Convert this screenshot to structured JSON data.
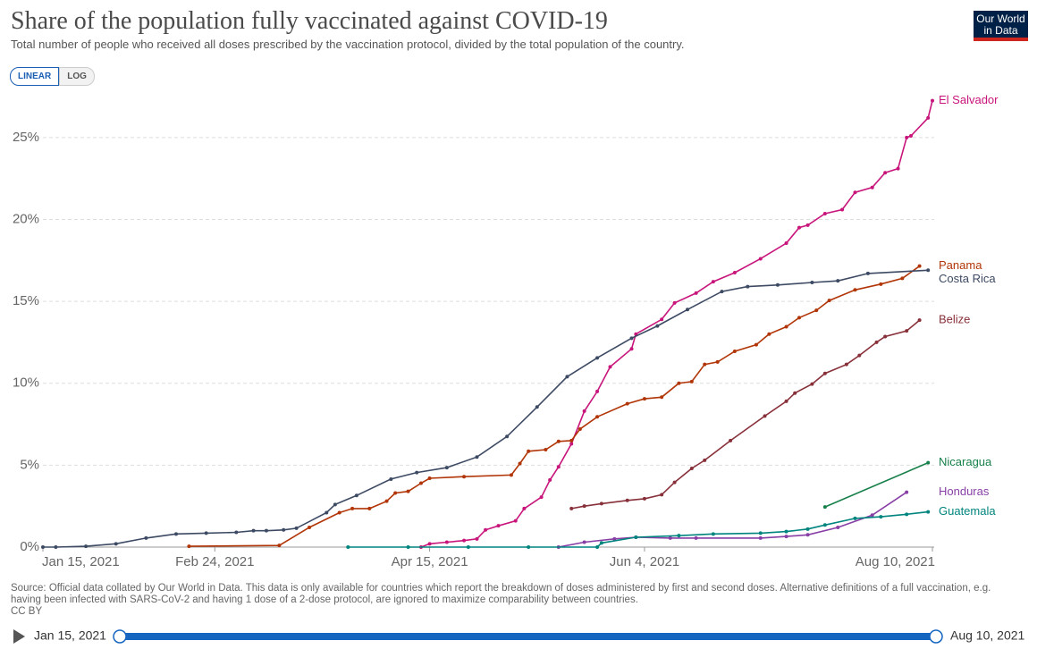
{
  "chart_data": {
    "type": "line",
    "title": "Share of the population fully vaccinated against COVID-19",
    "subtitle": "Total number of people who received all doses prescribed by the vaccination protocol, divided by the total population of the country.",
    "xlim": [
      "2021-01-15",
      "2021-08-10"
    ],
    "xticks": [
      {
        "value": "2021-01-15",
        "label": "Jan 15, 2021"
      },
      {
        "value": "2021-02-24",
        "label": "Feb 24, 2021"
      },
      {
        "value": "2021-04-15",
        "label": "Apr 15, 2021"
      },
      {
        "value": "2021-06-04",
        "label": "Jun 4, 2021"
      },
      {
        "value": "2021-08-10",
        "label": "Aug 10, 2021"
      }
    ],
    "ylim": [
      0,
      27.5
    ],
    "yticks": [
      {
        "value": 0,
        "label": "0%"
      },
      {
        "value": 5,
        "label": "5%"
      },
      {
        "value": 10,
        "label": "10%"
      },
      {
        "value": 15,
        "label": "15%"
      },
      {
        "value": 20,
        "label": "20%"
      },
      {
        "value": 25,
        "label": "25%"
      }
    ],
    "grid": true,
    "log_scale": false,
    "series": [
      {
        "name": "El Salvador",
        "color": "#c8157b",
        "x": [
          "2021-04-13",
          "2021-04-15",
          "2021-04-19",
          "2021-04-23",
          "2021-04-26",
          "2021-04-28",
          "2021-05-01",
          "2021-05-05",
          "2021-05-07",
          "2021-05-11",
          "2021-05-13",
          "2021-05-15",
          "2021-05-18",
          "2021-05-21",
          "2021-05-24",
          "2021-05-27",
          "2021-06-01",
          "2021-06-02",
          "2021-06-08",
          "2021-06-11",
          "2021-06-16",
          "2021-06-20",
          "2021-06-25",
          "2021-07-01",
          "2021-07-07",
          "2021-07-10",
          "2021-07-12",
          "2021-07-16",
          "2021-07-20",
          "2021-07-23",
          "2021-07-27",
          "2021-07-30",
          "2021-08-02",
          "2021-08-04",
          "2021-08-05",
          "2021-08-09",
          "2021-08-10"
        ],
        "values": [
          0,
          0.2,
          0.3,
          0.4,
          0.5,
          1.05,
          1.3,
          1.6,
          2.35,
          3.05,
          4.1,
          4.9,
          6.3,
          8.3,
          9.5,
          11.0,
          12.1,
          13.0,
          13.9,
          14.9,
          15.5,
          16.2,
          16.75,
          17.6,
          18.55,
          19.5,
          19.65,
          20.35,
          20.6,
          21.65,
          21.95,
          22.85,
          23.1,
          25.0,
          25.1,
          26.2,
          27.25
        ]
      },
      {
        "name": "Panama",
        "color": "#b13507",
        "x": [
          "2021-02-18",
          "2021-03-11",
          "2021-03-18",
          "2021-03-25",
          "2021-03-28",
          "2021-04-01",
          "2021-04-05",
          "2021-04-07",
          "2021-04-10",
          "2021-04-13",
          "2021-04-15",
          "2021-04-23",
          "2021-05-04",
          "2021-05-06",
          "2021-05-08",
          "2021-05-12",
          "2021-05-15",
          "2021-05-18",
          "2021-05-20",
          "2021-05-24",
          "2021-05-31",
          "2021-06-04",
          "2021-06-08",
          "2021-06-12",
          "2021-06-15",
          "2021-06-18",
          "2021-06-21",
          "2021-06-25",
          "2021-06-30",
          "2021-07-03",
          "2021-07-07",
          "2021-07-10",
          "2021-07-14",
          "2021-07-17",
          "2021-07-23",
          "2021-07-29",
          "2021-08-03",
          "2021-08-07"
        ],
        "values": [
          0.05,
          0.1,
          1.2,
          2.1,
          2.35,
          2.35,
          2.8,
          3.3,
          3.4,
          3.9,
          4.2,
          4.3,
          4.4,
          5.1,
          5.85,
          5.95,
          6.45,
          6.5,
          7.2,
          7.95,
          8.75,
          9.05,
          9.15,
          10.0,
          10.1,
          11.15,
          11.3,
          11.95,
          12.35,
          13.0,
          13.45,
          14.0,
          14.45,
          15.05,
          15.7,
          16.05,
          16.4,
          17.15
        ]
      },
      {
        "name": "Costa Rica",
        "color": "#3d4a63",
        "x": [
          "2021-01-15",
          "2021-01-18",
          "2021-01-25",
          "2021-02-01",
          "2021-02-08",
          "2021-02-15",
          "2021-02-22",
          "2021-03-01",
          "2021-03-05",
          "2021-03-08",
          "2021-03-12",
          "2021-03-15",
          "2021-03-22",
          "2021-03-24",
          "2021-03-29",
          "2021-04-06",
          "2021-04-12",
          "2021-04-19",
          "2021-04-26",
          "2021-05-03",
          "2021-05-10",
          "2021-05-17",
          "2021-05-24",
          "2021-06-01",
          "2021-06-07",
          "2021-06-14",
          "2021-06-22",
          "2021-06-28",
          "2021-07-05",
          "2021-07-13",
          "2021-07-19",
          "2021-07-26",
          "2021-08-09"
        ],
        "values": [
          0,
          0,
          0.05,
          0.2,
          0.55,
          0.8,
          0.85,
          0.9,
          1.0,
          1.0,
          1.05,
          1.15,
          2.1,
          2.6,
          3.15,
          4.15,
          4.55,
          4.85,
          5.5,
          6.75,
          8.55,
          10.4,
          11.55,
          12.75,
          13.5,
          14.5,
          15.6,
          15.9,
          16.0,
          16.15,
          16.25,
          16.7,
          16.9
        ]
      },
      {
        "name": "Belize",
        "color": "#883039",
        "x": [
          "2021-05-18",
          "2021-05-21",
          "2021-05-25",
          "2021-05-31",
          "2021-06-04",
          "2021-06-08",
          "2021-06-11",
          "2021-06-15",
          "2021-06-18",
          "2021-06-24",
          "2021-07-02",
          "2021-07-07",
          "2021-07-09",
          "2021-07-13",
          "2021-07-16",
          "2021-07-21",
          "2021-07-24",
          "2021-07-28",
          "2021-07-30",
          "2021-08-04",
          "2021-08-07"
        ],
        "values": [
          2.35,
          2.5,
          2.65,
          2.85,
          2.95,
          3.2,
          3.95,
          4.8,
          5.3,
          6.5,
          8.0,
          8.9,
          9.4,
          9.95,
          10.6,
          11.15,
          11.7,
          12.5,
          12.85,
          13.2,
          13.85
        ]
      },
      {
        "name": "Nicaragua",
        "color": "#18804a",
        "x": [
          "2021-07-16",
          "2021-08-09"
        ],
        "values": [
          2.45,
          5.15
        ]
      },
      {
        "name": "Honduras",
        "color": "#883fa5",
        "x": [
          "2021-05-15",
          "2021-05-21",
          "2021-05-28",
          "2021-06-02",
          "2021-06-10",
          "2021-06-16",
          "2021-07-01",
          "2021-07-07",
          "2021-07-12",
          "2021-07-19",
          "2021-07-27",
          "2021-08-04"
        ],
        "values": [
          0,
          0.3,
          0.5,
          0.6,
          0.55,
          0.55,
          0.55,
          0.65,
          0.75,
          1.2,
          1.95,
          3.35
        ]
      },
      {
        "name": "Guatemala",
        "color": "#00847e",
        "x": [
          "2021-03-27",
          "2021-04-10",
          "2021-04-24",
          "2021-05-08",
          "2021-05-24",
          "2021-05-25",
          "2021-06-02",
          "2021-06-12",
          "2021-06-20",
          "2021-07-01",
          "2021-07-07",
          "2021-07-12",
          "2021-07-16",
          "2021-07-23",
          "2021-07-29",
          "2021-08-04",
          "2021-08-09"
        ],
        "values": [
          0,
          0,
          0,
          0,
          0,
          0.25,
          0.6,
          0.7,
          0.8,
          0.85,
          0.95,
          1.1,
          1.35,
          1.75,
          1.85,
          2.0,
          2.15
        ]
      }
    ]
  },
  "logo": [
    "Our World",
    "in Data"
  ],
  "controls": {
    "scale_buttons": [
      "LINEAR",
      "LOG"
    ],
    "timeline_start": "Jan 15, 2021",
    "timeline_end": "Aug 10, 2021"
  },
  "source": "Source: Official data collated by Our World in Data. This data is only available for countries which report the breakdown of doses administered by first and second doses. Alternative definitions of a full vaccination, e.g. having been infected with SARS-CoV-2 and having 1 dose of a 2-dose protocol, are ignored to maximize comparability between countries.",
  "license": "CC BY"
}
